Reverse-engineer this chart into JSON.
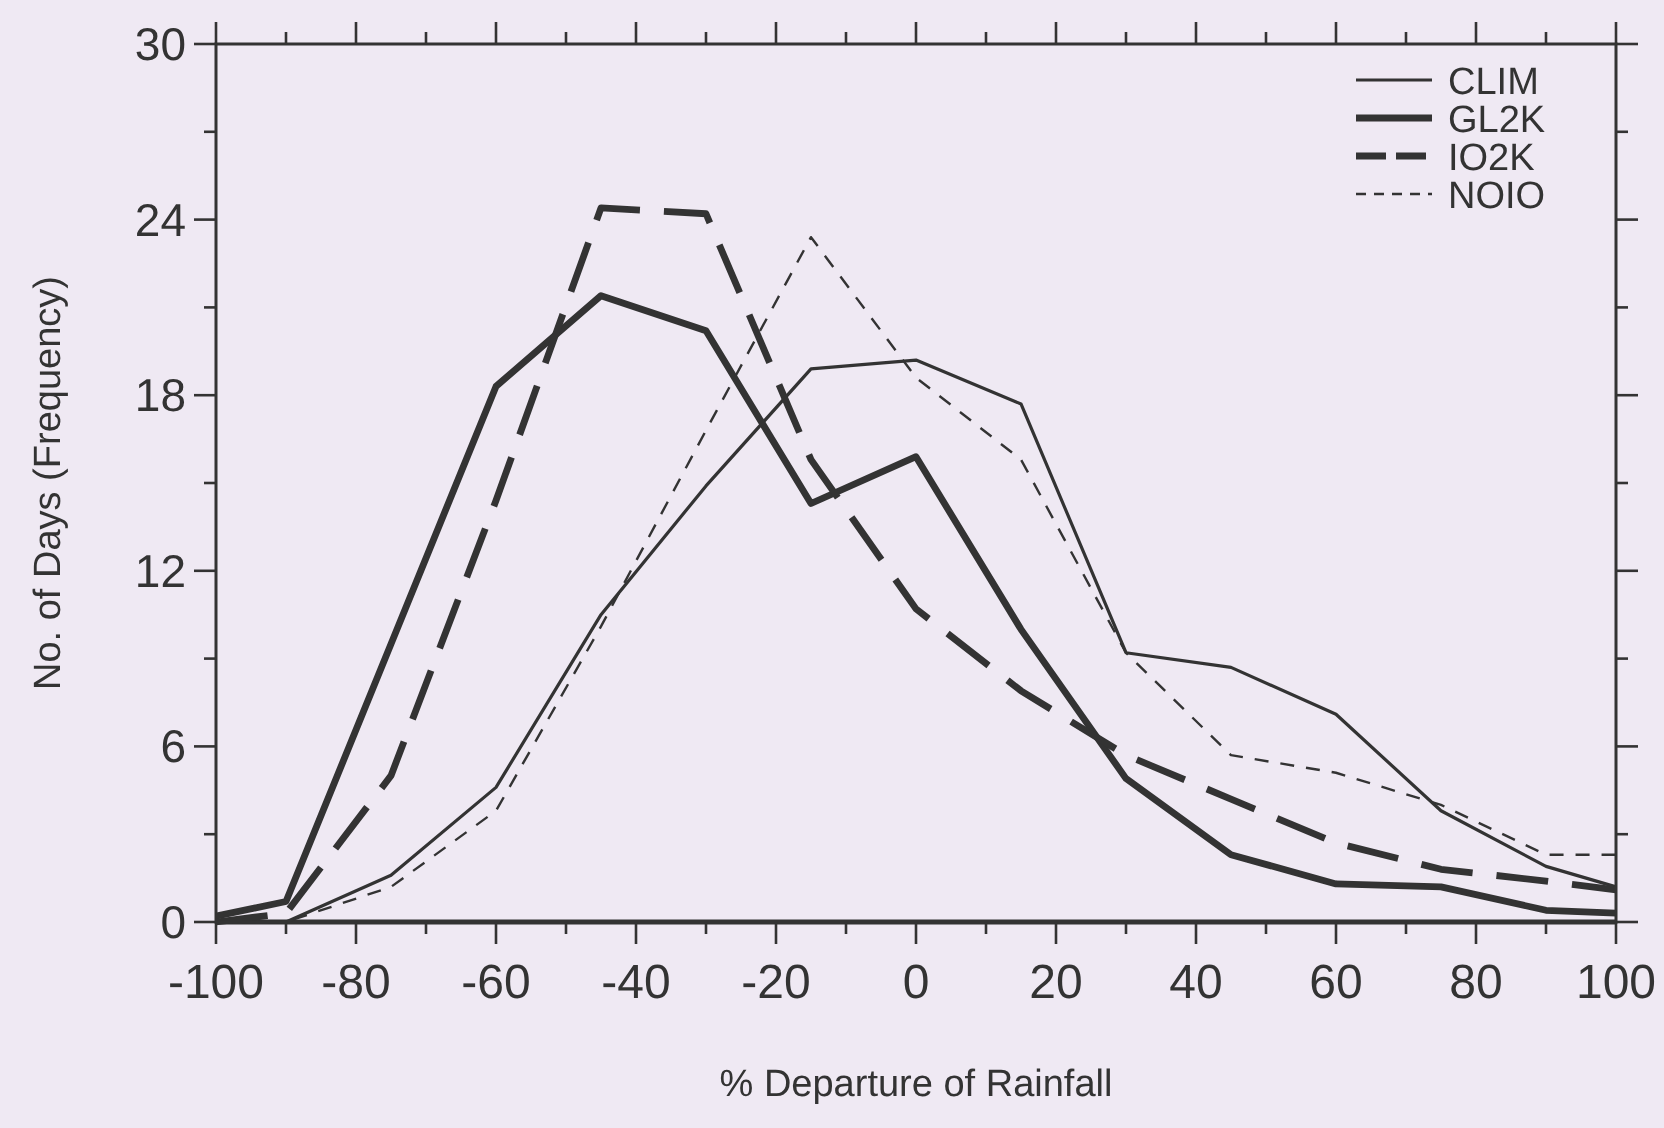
{
  "chart_data": {
    "type": "line",
    "xlabel": "% Departure of Rainfall",
    "ylabel": "No. of Days (Frequency)",
    "x": [
      -100,
      -90,
      -75,
      -60,
      -45,
      -30,
      -15,
      0,
      15,
      30,
      45,
      60,
      75,
      90,
      100
    ],
    "series": [
      {
        "name": "CLIM",
        "color": "#333333",
        "line_style": "solid",
        "values": [
          0,
          0,
          1.6,
          4.6,
          10.5,
          14.9,
          18.9,
          19.2,
          17.7,
          9.2,
          8.7,
          7.1,
          3.8,
          1.9,
          1.2
        ]
      },
      {
        "name": "GL2K",
        "color": "#333333",
        "line_style": "solid",
        "values": [
          0.2,
          0.7,
          9.5,
          18.3,
          21.4,
          20.2,
          14.3,
          15.9,
          10,
          4.9,
          2.3,
          1.3,
          1.2,
          0.4,
          0.3
        ]
      },
      {
        "name": "IO2K",
        "color": "#333333",
        "line_style": "dashed",
        "values": [
          0,
          0.3,
          5,
          14.4,
          24.4,
          24.2,
          15.8,
          10.7,
          7.9,
          5.7,
          4.2,
          2.7,
          1.8,
          1.4,
          1.1
        ]
      },
      {
        "name": "NOIO",
        "color": "#333333",
        "line_style": "dashed",
        "values": [
          0,
          0,
          1.2,
          3.8,
          10.1,
          16.8,
          23.4,
          18.6,
          15.8,
          9.2,
          5.7,
          5.1,
          4,
          2.3,
          2.3
        ]
      }
    ],
    "xlim": [
      -100,
      100
    ],
    "xticks": [
      -100,
      {
        "value": -90,
        "label": null
      },
      -80,
      {
        "value": -70,
        "label": null
      },
      -60,
      {
        "value": -50,
        "label": null
      },
      -40,
      {
        "value": -30,
        "label": null
      },
      -20,
      {
        "value": -10,
        "label": null
      },
      0,
      {
        "value": 10,
        "label": null
      },
      20,
      {
        "value": 30,
        "label": null
      },
      40,
      {
        "value": 50,
        "label": null
      },
      60,
      {
        "value": 70,
        "label": null
      },
      80,
      {
        "value": 90,
        "label": null
      },
      100
    ],
    "ylim": [
      0,
      30
    ],
    "yticks": [
      0,
      {
        "value": 3,
        "label": null
      },
      6,
      {
        "value": 9,
        "label": null
      },
      12,
      {
        "value": 15,
        "label": null
      },
      18,
      {
        "value": 21,
        "label": null
      },
      24,
      {
        "value": 27,
        "label": null
      },
      30
    ],
    "grid": false,
    "legend": "top right",
    "marker": "none"
  }
}
